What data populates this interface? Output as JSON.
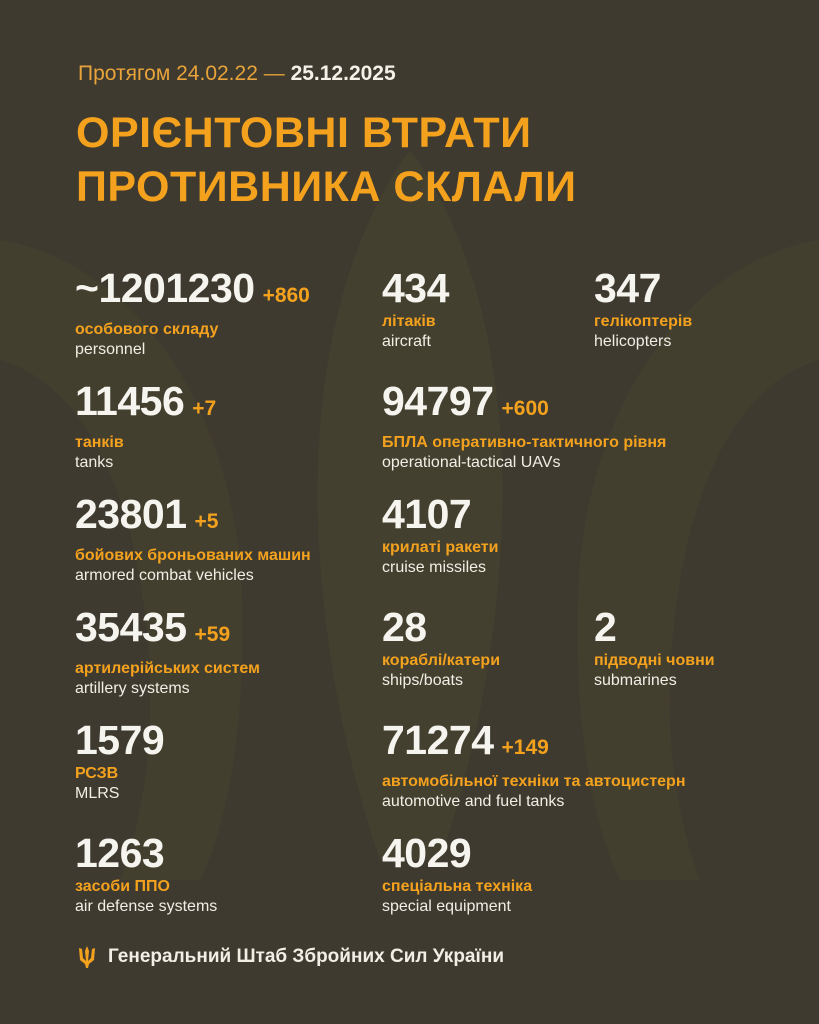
{
  "header": {
    "period_prefix": "Протягом 24.02.22 —",
    "period_end": "25.12.2025",
    "title_line1": "ОРІЄНТОВНІ ВТРАТИ",
    "title_line2": "ПРОТИВНИКА СКЛАЛИ"
  },
  "colors": {
    "background": "#3e3a2f",
    "accent": "#f4a21e",
    "text": "#f6f4ee"
  },
  "stats": [
    {
      "value": "~1201230",
      "delta": "+860",
      "ua": "особового складу",
      "en": "personnel"
    },
    {
      "value": "434",
      "delta": "",
      "ua": "літаків",
      "en": "aircraft"
    },
    {
      "value": "347",
      "delta": "",
      "ua": "гелікоптерів",
      "en": "helicopters"
    },
    {
      "value": "11456",
      "delta": "+7",
      "ua": "танків",
      "en": "tanks"
    },
    {
      "value": "94797",
      "delta": "+600",
      "ua": "БПЛА оперативно-тактичного рівня",
      "en": "operational-tactical UAVs"
    },
    {
      "value": "23801",
      "delta": "+5",
      "ua": "бойових броньованих машин",
      "en": "armored combat vehicles"
    },
    {
      "value": "4107",
      "delta": "",
      "ua": "крилаті ракети",
      "en": "cruise missiles"
    },
    {
      "value": "35435",
      "delta": "+59",
      "ua": "артилерійських систем",
      "en": "artillery systems"
    },
    {
      "value": "28",
      "delta": "",
      "ua": "кораблі/катери",
      "en": "ships/boats"
    },
    {
      "value": "2",
      "delta": "",
      "ua": "підводні човни",
      "en": "submarines"
    },
    {
      "value": "1579",
      "delta": "",
      "ua": "РСЗВ",
      "en": "MLRS"
    },
    {
      "value": "71274",
      "delta": "+149",
      "ua": "автомобільної техніки та автоцистерн",
      "en": "automotive and fuel tanks"
    },
    {
      "value": "1263",
      "delta": "",
      "ua": "засоби ППО",
      "en": "air defense systems"
    },
    {
      "value": "4029",
      "delta": "",
      "ua": "спеціальна техніка",
      "en": "special equipment"
    }
  ],
  "footer": {
    "icon": "trident-icon",
    "text": "Генеральний Штаб Збройних Сил України"
  }
}
